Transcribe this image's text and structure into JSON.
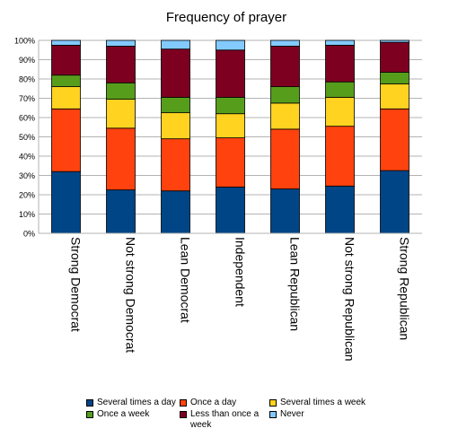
{
  "chart_data": {
    "type": "bar",
    "stacked": true,
    "title": "Frequency of prayer",
    "xlabel": "",
    "ylabel": "",
    "ylim": [
      0,
      100
    ],
    "yticks": [
      "0%",
      "10%",
      "20%",
      "30%",
      "40%",
      "50%",
      "60%",
      "70%",
      "80%",
      "90%",
      "100%"
    ],
    "grid": true,
    "legend_position": "bottom",
    "categories": [
      "Strong Democrat",
      "Not strong Democrat",
      "Lean Democrat",
      "Independent",
      "Lean Republican",
      "Not strong Republican",
      "Strong Republican"
    ],
    "series": [
      {
        "name": "Several times a day",
        "color": "#004586",
        "values": [
          32,
          22.5,
          22,
          24,
          23,
          24.5,
          32.5
        ]
      },
      {
        "name": "Once a day",
        "color": "#ff420e",
        "values": [
          32.5,
          32,
          27,
          25.5,
          31,
          31,
          32
        ]
      },
      {
        "name": "Several times a week",
        "color": "#ffd320",
        "values": [
          11.5,
          15,
          13.5,
          12.5,
          13.5,
          15,
          13
        ]
      },
      {
        "name": "Once a week",
        "color": "#579d1c",
        "values": [
          6,
          8.5,
          8,
          8.5,
          8.5,
          8,
          6
        ]
      },
      {
        "name": "Less than once a week",
        "color": "#7e0021",
        "values": [
          15.5,
          19,
          25,
          24.5,
          21,
          19,
          15.5
        ]
      },
      {
        "name": "Never",
        "color": "#83caff",
        "values": [
          2.5,
          3,
          4.5,
          5,
          3,
          2.5,
          1
        ]
      }
    ]
  }
}
